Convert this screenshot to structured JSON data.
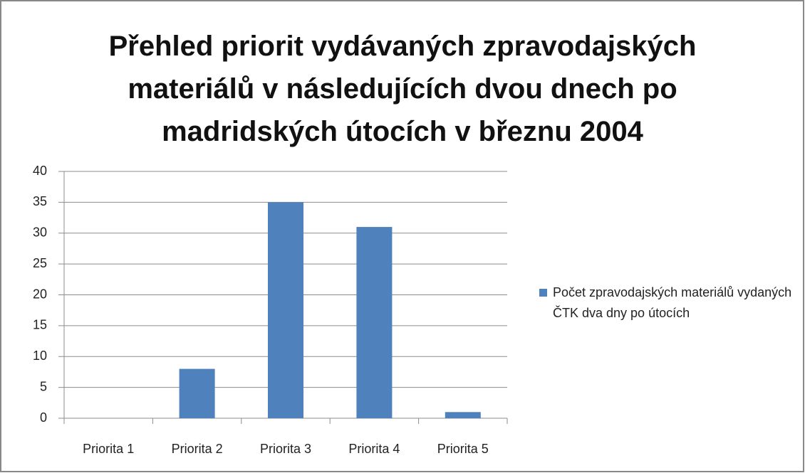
{
  "chart_data": {
    "type": "bar",
    "title": "Přehled priorit vydávaných zpravodajských materiálů v následujících dvou dnech po madridských útocích v březnu 2004",
    "categories": [
      "Priorita 1",
      "Priorita 2",
      "Priorita 3",
      "Priorita 4",
      "Priorita 5"
    ],
    "series": [
      {
        "name": "Počet zpravodajských materiálů vydaných ČTK dva dny po útocích",
        "color": "#4f81bd",
        "values": [
          0,
          8,
          35,
          31,
          1
        ]
      }
    ],
    "ylim": [
      0,
      40
    ],
    "yticks": [
      0,
      5,
      10,
      15,
      20,
      25,
      30,
      35,
      40
    ],
    "grid": true,
    "legend": "right"
  }
}
